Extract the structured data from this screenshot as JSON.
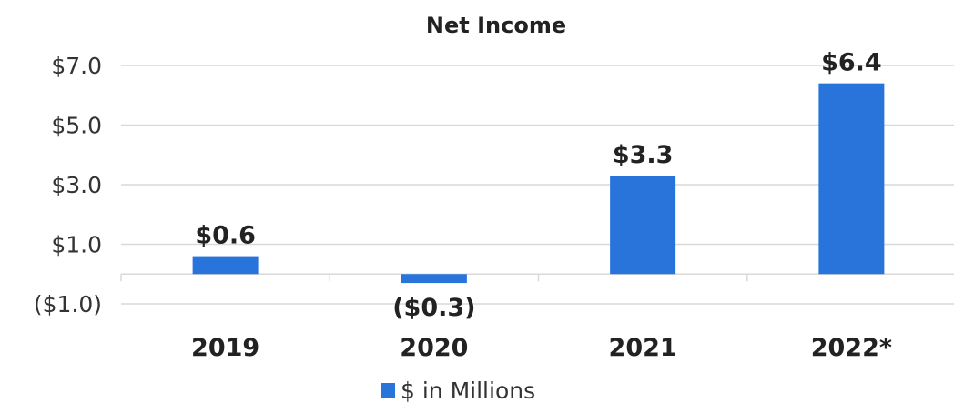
{
  "chart_data": {
    "type": "bar",
    "title": "Net Income",
    "categories": [
      "2019",
      "2020",
      "2021",
      "2022*"
    ],
    "series": [
      {
        "name": "$ in Millions",
        "values": [
          0.6,
          -0.3,
          3.3,
          6.4
        ],
        "color": "#2874DB"
      }
    ],
    "data_labels": [
      "$0.6",
      "($0.3)",
      "$3.3",
      "$6.4"
    ],
    "y_ticks": [
      -1.0,
      1.0,
      3.0,
      5.0,
      7.0
    ],
    "y_tick_labels": [
      "($1.0)",
      "$1.0",
      "$3.0",
      "$5.0",
      "$7.0"
    ],
    "ylim": [
      -1.0,
      7.0
    ],
    "grid": true,
    "legend_position": "bottom",
    "xlabel": "",
    "ylabel": ""
  }
}
